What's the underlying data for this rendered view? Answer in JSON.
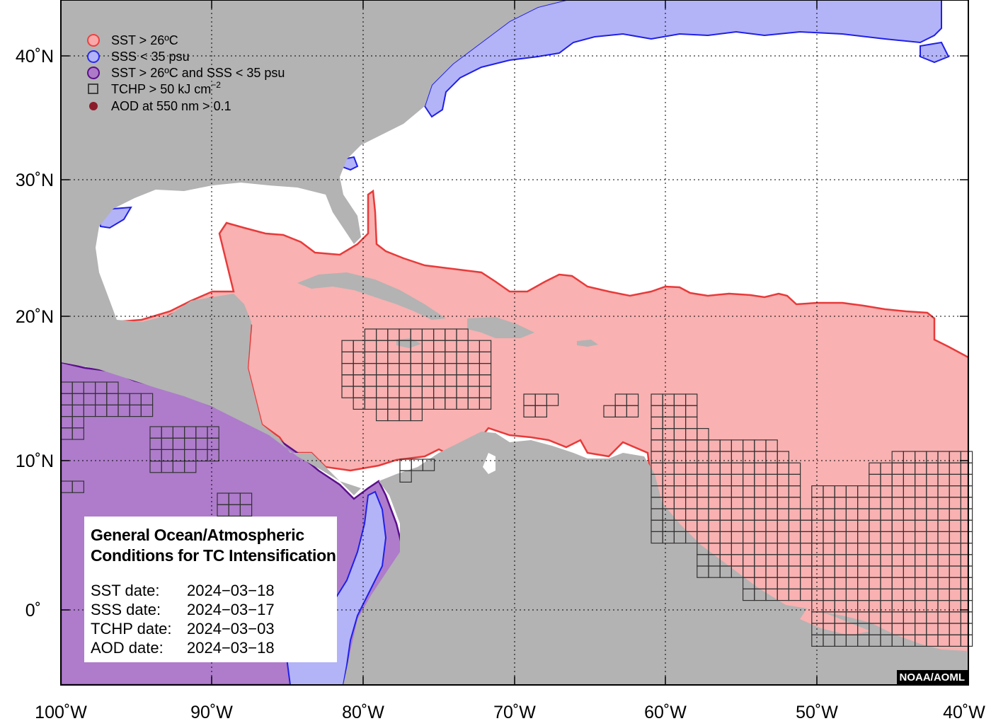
{
  "legend": {
    "items": [
      {
        "label": "SST > 26ºC",
        "symbol": "circle",
        "fill": "#f9a9a9",
        "stroke": "#f04040"
      },
      {
        "label": "SSS < 35 psu",
        "symbol": "circle",
        "fill": "#b3b3f8",
        "stroke": "#2a2af0"
      },
      {
        "label": "SST > 26ºC and SSS < 35 psu",
        "symbol": "circle",
        "fill": "#ad7ac8",
        "stroke": "#5b0f8c"
      },
      {
        "label_main": "TCHP > 50 kJ cm",
        "label_sup": "−2",
        "symbol": "square",
        "stroke": "#333333"
      },
      {
        "label": "AOD at 550 nm > 0.1",
        "symbol": "dot",
        "fill": "#8b1a2a"
      }
    ]
  },
  "axes": {
    "lat_labels": [
      "40˚N",
      "30˚N",
      "20˚N",
      "10˚N",
      "0˚"
    ],
    "lon_labels": [
      "100˚W",
      "90˚W",
      "80˚W",
      "70˚W",
      "60˚W",
      "50˚W",
      "40˚W"
    ],
    "lat_range": [
      -5,
      44
    ],
    "lon_range": [
      -100,
      -40
    ],
    "grid": "dotted"
  },
  "info_box": {
    "title_line1": "General Ocean/Atmospheric",
    "title_line2": "Conditions for TC Intensification",
    "rows": [
      {
        "key": "SST date:",
        "value": "2024−03−18"
      },
      {
        "key": "SSS date:",
        "value": "2024−03−17"
      },
      {
        "key": "TCHP date:",
        "value": "2024−03−03"
      },
      {
        "key": "AOD date:",
        "value": "2024−03−18"
      }
    ]
  },
  "credit": "NOAA/AOML",
  "colors": {
    "land": "#b3b3b3",
    "sst_fill": "#f9b1b1",
    "sst_line": "#e83a3a",
    "sss_fill": "#b3b3f8",
    "sss_line": "#2020e8",
    "both_fill": "#ae7ccb",
    "both_line": "#5b0f8c",
    "grid_box": "#333333"
  }
}
